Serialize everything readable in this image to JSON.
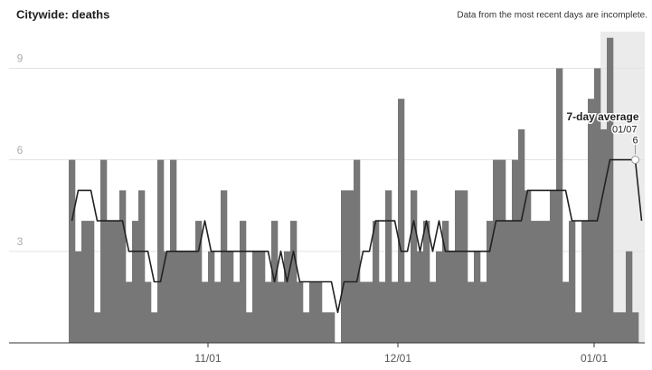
{
  "chart_data": {
    "type": "bar",
    "title": "Citywide: deaths",
    "note": "Data from the most recent days are incomplete.",
    "categories": [
      "10/10",
      "10/11",
      "10/12",
      "10/13",
      "10/14",
      "10/15",
      "10/16",
      "10/17",
      "10/18",
      "10/19",
      "10/20",
      "10/21",
      "10/22",
      "10/23",
      "10/24",
      "10/25",
      "10/26",
      "10/27",
      "10/28",
      "10/29",
      "10/30",
      "10/31",
      "11/01",
      "11/02",
      "11/03",
      "11/04",
      "11/05",
      "11/06",
      "11/07",
      "11/08",
      "11/09",
      "11/10",
      "11/11",
      "11/12",
      "11/13",
      "11/14",
      "11/15",
      "11/16",
      "11/17",
      "11/18",
      "11/19",
      "11/20",
      "11/21",
      "11/22",
      "11/23",
      "11/24",
      "11/25",
      "11/26",
      "11/27",
      "11/28",
      "11/29",
      "11/30",
      "12/01",
      "12/02",
      "12/03",
      "12/04",
      "12/05",
      "12/06",
      "12/07",
      "12/08",
      "12/09",
      "12/10",
      "12/11",
      "12/12",
      "12/13",
      "12/14",
      "12/15",
      "12/16",
      "12/17",
      "12/18",
      "12/19",
      "12/20",
      "12/21",
      "12/22",
      "12/23",
      "12/24",
      "12/25",
      "12/26",
      "12/27",
      "12/28",
      "12/29",
      "12/30",
      "12/31",
      "01/01",
      "01/02",
      "01/03",
      "01/04",
      "01/05",
      "01/06",
      "01/07",
      "01/08"
    ],
    "series": [
      {
        "name": "Deaths",
        "color": "#777777",
        "values": [
          6,
          3,
          4,
          4,
          1,
          6,
          4,
          4,
          5,
          2,
          4,
          5,
          2,
          1,
          6,
          3,
          6,
          3,
          3,
          3,
          4,
          2,
          3,
          2,
          5,
          3,
          2,
          4,
          1,
          3,
          3,
          2,
          4,
          2,
          3,
          4,
          2,
          1,
          2,
          2,
          1,
          1,
          0,
          5,
          5,
          6,
          2,
          2,
          4,
          2,
          5,
          2,
          8,
          2,
          5,
          3,
          4,
          2,
          3,
          4,
          3,
          5,
          5,
          2,
          3,
          2,
          4,
          6,
          6,
          4,
          6,
          7,
          5,
          4,
          4,
          4,
          5,
          9,
          2,
          4,
          1,
          4,
          8,
          9,
          7,
          10,
          1,
          1,
          3,
          1,
          null
        ]
      },
      {
        "name": "7-day average",
        "color": "#222222",
        "values": [
          4,
          5,
          5,
          5,
          4,
          4,
          4,
          4,
          4,
          3,
          3,
          3,
          3,
          2,
          2,
          3,
          3,
          3,
          3,
          3,
          3,
          4,
          3,
          3,
          3,
          3,
          3,
          3,
          3,
          3,
          3,
          3,
          2,
          3,
          2,
          3,
          2,
          2,
          2,
          2,
          2,
          2,
          1,
          2,
          2,
          2,
          3,
          3,
          4,
          4,
          4,
          4,
          3,
          3,
          4,
          3,
          4,
          3,
          4,
          3,
          3,
          3,
          3,
          3,
          3,
          3,
          3,
          4,
          4,
          4,
          4,
          4,
          5,
          5,
          5,
          5,
          5,
          5,
          5,
          4,
          4,
          4,
          4,
          4,
          5,
          6,
          6,
          6,
          6,
          6,
          4
        ]
      }
    ],
    "annotation": {
      "series": 1,
      "date": "01/07",
      "value": 6
    },
    "xticks": [
      "11/01",
      "12/01",
      "01/01"
    ],
    "ylim": [
      0,
      10.2
    ],
    "yticks": [
      3,
      6,
      9
    ],
    "grid": true,
    "shade_last": 7,
    "shade_color": "#ebebeb"
  }
}
